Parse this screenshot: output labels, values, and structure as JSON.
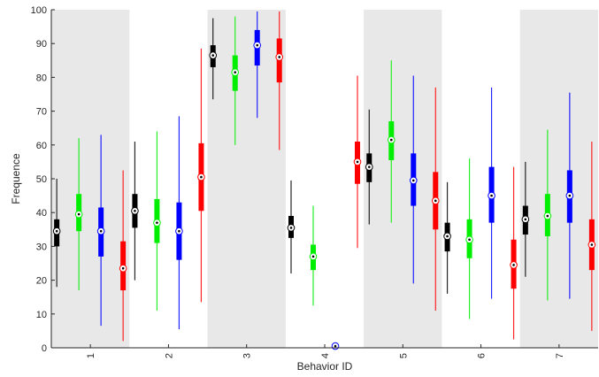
{
  "chart_data": {
    "type": "boxplot",
    "title": "",
    "xlabel": "Behavior ID",
    "ylabel": "Frequence",
    "ylim": [
      0,
      100
    ],
    "yticks": [
      0,
      10,
      20,
      30,
      40,
      50,
      60,
      70,
      80,
      90,
      100
    ],
    "categories": [
      "1",
      "2",
      "3",
      "4",
      "5",
      "6",
      "7"
    ],
    "shaded_groups": [
      "1",
      "3",
      "5",
      "7"
    ],
    "grid": false,
    "series": [
      {
        "color": "#000000",
        "boxes": [
          {
            "whisker_low": 18,
            "q1": 30,
            "median": 34.5,
            "q3": 38,
            "whisker_high": 50
          },
          {
            "whisker_low": 20,
            "q1": 35.5,
            "median": 40.5,
            "q3": 45.5,
            "whisker_high": 61
          },
          {
            "whisker_low": 73.5,
            "q1": 83,
            "median": 86.5,
            "q3": 89.5,
            "whisker_high": 97.5
          },
          {
            "whisker_low": 22,
            "q1": 32.5,
            "median": 35.5,
            "q3": 39,
            "whisker_high": 49.5
          },
          {
            "whisker_low": 36.5,
            "q1": 49,
            "median": 53.5,
            "q3": 57.5,
            "whisker_high": 70.5
          },
          {
            "whisker_low": 16,
            "q1": 28.5,
            "median": 33,
            "q3": 37,
            "whisker_high": 49
          },
          {
            "whisker_low": 21,
            "q1": 33.5,
            "median": 38,
            "q3": 42,
            "whisker_high": 55
          }
        ]
      },
      {
        "color": "#00ee00",
        "boxes": [
          {
            "whisker_low": 17,
            "q1": 34.5,
            "median": 39.5,
            "q3": 45.5,
            "whisker_high": 62
          },
          {
            "whisker_low": 11,
            "q1": 31,
            "median": 37,
            "q3": 44,
            "whisker_high": 64
          },
          {
            "whisker_low": 60,
            "q1": 76,
            "median": 81.5,
            "q3": 86.5,
            "whisker_high": 98
          },
          {
            "whisker_low": 12.5,
            "q1": 23,
            "median": 27,
            "q3": 30.5,
            "whisker_high": 42
          },
          {
            "whisker_low": 37,
            "q1": 55.5,
            "median": 61.5,
            "q3": 67,
            "whisker_high": 85
          },
          {
            "whisker_low": 8.5,
            "q1": 26.5,
            "median": 32,
            "q3": 38,
            "whisker_high": 56
          },
          {
            "whisker_low": 14,
            "q1": 33,
            "median": 39,
            "q3": 45.5,
            "whisker_high": 64.5
          }
        ]
      },
      {
        "color": "#0000ff",
        "boxes": [
          {
            "whisker_low": 6.5,
            "q1": 27,
            "median": 34.5,
            "q3": 41.5,
            "whisker_high": 63
          },
          {
            "whisker_low": 5.5,
            "q1": 26,
            "median": 34.5,
            "q3": 43,
            "whisker_high": 68.5
          },
          {
            "whisker_low": 68,
            "q1": 83.5,
            "median": 89.5,
            "q3": 94,
            "whisker_high": 99.5
          },
          {
            "whisker_low": 0.5,
            "q1": 0.5,
            "median": 0.5,
            "q3": 0.5,
            "whisker_high": 0.5
          },
          {
            "whisker_low": 19,
            "q1": 42,
            "median": 49.5,
            "q3": 57.5,
            "whisker_high": 80.5
          },
          {
            "whisker_low": 14.5,
            "q1": 37,
            "median": 45,
            "q3": 53.5,
            "whisker_high": 77
          },
          {
            "whisker_low": 14.5,
            "q1": 37,
            "median": 45,
            "q3": 52.5,
            "whisker_high": 75.5
          }
        ]
      },
      {
        "color": "#ff0000",
        "boxes": [
          {
            "whisker_low": 2,
            "q1": 17,
            "median": 23.5,
            "q3": 31.5,
            "whisker_high": 52.5
          },
          {
            "whisker_low": 13.5,
            "q1": 40.5,
            "median": 50.5,
            "q3": 60.5,
            "whisker_high": 88.5
          },
          {
            "whisker_low": 58.5,
            "q1": 78.5,
            "median": 86,
            "q3": 91.5,
            "whisker_high": 99.5
          },
          {
            "whisker_low": 29.5,
            "q1": 48.5,
            "median": 55,
            "q3": 61,
            "whisker_high": 80.5
          },
          {
            "whisker_low": 11,
            "q1": 35,
            "median": 43.5,
            "q3": 52,
            "whisker_high": 77
          },
          {
            "whisker_low": 2.5,
            "q1": 17.5,
            "median": 24.5,
            "q3": 32,
            "whisker_high": 53.5
          },
          {
            "whisker_low": 5,
            "q1": 23,
            "median": 30.5,
            "q3": 38,
            "whisker_high": 61
          }
        ]
      }
    ]
  }
}
